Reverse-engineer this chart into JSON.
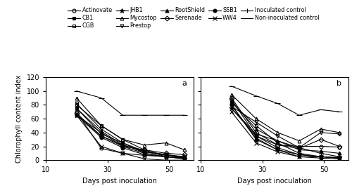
{
  "x_ticks": [
    10,
    30,
    50
  ],
  "xlim": [
    10,
    58
  ],
  "ylim": [
    0,
    120
  ],
  "yticks": [
    0,
    20,
    40,
    60,
    80,
    100,
    120
  ],
  "xlabel": "Days post inoculation",
  "ylabel": "Chlorophyll content index",
  "panel_a_label": "a",
  "panel_b_label": "b",
  "legend_order": [
    "Actinovate",
    "CB1",
    "CGB",
    "JHB1",
    "Mycostop",
    "Prestop",
    "RootShield",
    "Serenade",
    "SSB1",
    "WW4",
    "Inoculated control",
    "Non-inoculated control"
  ],
  "marker_map": {
    "Actinovate": {
      "marker": "o",
      "fillstyle": "none",
      "ms": 3.5
    },
    "CB1": {
      "marker": "s",
      "fillstyle": "full",
      "ms": 3.5
    },
    "CGB": {
      "marker": "s",
      "fillstyle": "none",
      "ms": 3.5
    },
    "JHB1": {
      "marker": "*",
      "fillstyle": "full",
      "ms": 5.0
    },
    "Mycostop": {
      "marker": "^",
      "fillstyle": "none",
      "ms": 3.5
    },
    "Prestop": {
      "marker": "v",
      "fillstyle": "none",
      "ms": 3.5
    },
    "RootShield": {
      "marker": "^",
      "fillstyle": "full",
      "ms": 3.5
    },
    "Serenade": {
      "marker": "D",
      "fillstyle": "none",
      "ms": 3.5
    },
    "SSB1": {
      "marker": "o",
      "fillstyle": "full",
      "ms": 3.5
    },
    "WW4": {
      "marker": "x",
      "fillstyle": "full",
      "ms": 4.0
    },
    "Inoculated control": {
      "marker": "+",
      "fillstyle": "full",
      "ms": 5.0
    },
    "Non-inoculated control": {
      "marker": "_",
      "fillstyle": "full",
      "ms": 6.0
    }
  },
  "series": {
    "Actinovate": {
      "a": [
        20,
        70,
        28,
        17,
        35,
        10,
        42,
        7,
        49,
        5,
        55,
        4
      ],
      "b": [
        20,
        88,
        28,
        35,
        35,
        22,
        42,
        20,
        49,
        20,
        55,
        19
      ]
    },
    "CB1": {
      "a": [
        20,
        75,
        28,
        38,
        35,
        25,
        42,
        10,
        49,
        5,
        55,
        3
      ],
      "b": [
        20,
        80,
        28,
        32,
        35,
        15,
        42,
        5,
        49,
        3,
        55,
        2
      ]
    },
    "CGB": {
      "a": [
        20,
        80,
        28,
        50,
        35,
        30,
        42,
        15,
        49,
        5,
        55,
        4
      ],
      "b": [
        20,
        83,
        28,
        50,
        35,
        25,
        42,
        10,
        49,
        5,
        55,
        3
      ]
    },
    "JHB1": {
      "a": [
        20,
        65,
        28,
        40,
        35,
        20,
        42,
        10,
        49,
        5,
        55,
        2
      ],
      "b": [
        20,
        75,
        28,
        35,
        35,
        18,
        42,
        8,
        49,
        5,
        55,
        3
      ]
    },
    "Mycostop": {
      "a": [
        20,
        90,
        28,
        50,
        35,
        30,
        42,
        22,
        49,
        25,
        55,
        15
      ],
      "b": [
        20,
        95,
        28,
        60,
        35,
        40,
        42,
        28,
        49,
        45,
        55,
        40
      ]
    },
    "Prestop": {
      "a": [
        20,
        82,
        28,
        45,
        35,
        25,
        42,
        13,
        49,
        8,
        55,
        5
      ],
      "b": [
        20,
        78,
        28,
        55,
        35,
        35,
        42,
        18,
        49,
        40,
        55,
        38
      ]
    },
    "RootShield": {
      "a": [
        20,
        75,
        28,
        42,
        35,
        22,
        42,
        13,
        49,
        8,
        55,
        4
      ],
      "b": [
        20,
        85,
        28,
        45,
        35,
        28,
        42,
        15,
        49,
        13,
        55,
        10
      ]
    },
    "Serenade": {
      "a": [
        20,
        68,
        28,
        35,
        35,
        20,
        42,
        15,
        49,
        10,
        55,
        8
      ],
      "b": [
        20,
        90,
        28,
        40,
        35,
        22,
        42,
        17,
        49,
        30,
        55,
        20
      ]
    },
    "SSB1": {
      "a": [
        20,
        65,
        28,
        33,
        35,
        18,
        42,
        8,
        49,
        5,
        55,
        2
      ],
      "b": [
        20,
        80,
        28,
        30,
        35,
        15,
        42,
        8,
        49,
        5,
        55,
        4
      ]
    },
    "WW4": {
      "a": [
        20,
        65,
        28,
        20,
        35,
        10,
        42,
        2,
        49,
        0,
        55,
        0
      ],
      "b": [
        20,
        70,
        28,
        25,
        35,
        12,
        42,
        5,
        49,
        5,
        55,
        3
      ]
    },
    "Inoculated control": {
      "a": [
        20,
        65,
        28,
        35,
        35,
        22,
        42,
        12,
        49,
        7,
        55,
        5
      ],
      "b": [
        20,
        75,
        28,
        38,
        35,
        28,
        42,
        18,
        49,
        10,
        55,
        5
      ]
    },
    "Non-inoculated control": {
      "a": [
        20,
        100,
        28,
        90,
        35,
        65,
        42,
        65,
        49,
        65,
        55,
        65
      ],
      "b": [
        20,
        107,
        28,
        93,
        35,
        82,
        42,
        65,
        49,
        73,
        55,
        70
      ]
    }
  }
}
